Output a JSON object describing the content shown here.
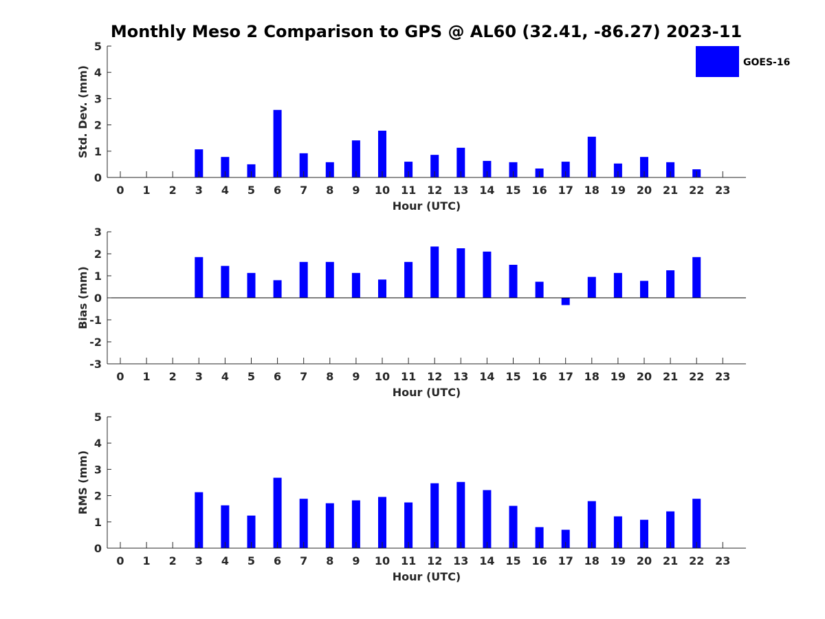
{
  "figure": {
    "title": "Monthly Meso 2 Comparison to GPS @ AL60 (32.41, -86.27) 2023-11",
    "bar_color": "#0000ff"
  },
  "legend": {
    "label": "GOES-16",
    "placement": "top-right"
  },
  "chart_data": [
    {
      "type": "bar",
      "id": "std",
      "xlabel": "Hour (UTC)",
      "ylabel": "Std. Dev. (mm)",
      "ylim": [
        0,
        5
      ],
      "yticks": [
        0,
        1,
        2,
        3,
        4,
        5
      ],
      "categories": [
        "0",
        "1",
        "2",
        "3",
        "4",
        "5",
        "6",
        "7",
        "8",
        "9",
        "10",
        "11",
        "12",
        "13",
        "14",
        "15",
        "16",
        "17",
        "18",
        "19",
        "20",
        "21",
        "22",
        "23"
      ],
      "series": [
        {
          "name": "GOES-16",
          "values": [
            null,
            null,
            null,
            1.07,
            0.78,
            0.5,
            2.57,
            0.92,
            0.58,
            1.41,
            1.78,
            0.6,
            0.86,
            1.13,
            0.63,
            0.58,
            0.34,
            0.6,
            1.55,
            0.53,
            0.78,
            0.58,
            0.31,
            null
          ]
        }
      ]
    },
    {
      "type": "bar",
      "id": "bias",
      "xlabel": "Hour (UTC)",
      "ylabel": "Bias (mm)",
      "ylim": [
        -3,
        3
      ],
      "yticks": [
        -3,
        -2,
        -1,
        0,
        1,
        2,
        3
      ],
      "zero_line": true,
      "categories": [
        "0",
        "1",
        "2",
        "3",
        "4",
        "5",
        "6",
        "7",
        "8",
        "9",
        "10",
        "11",
        "12",
        "13",
        "14",
        "15",
        "16",
        "17",
        "18",
        "19",
        "20",
        "21",
        "22",
        "23"
      ],
      "series": [
        {
          "name": "GOES-16",
          "values": [
            null,
            null,
            null,
            1.85,
            1.45,
            1.13,
            0.8,
            1.63,
            1.63,
            1.13,
            0.83,
            1.63,
            2.33,
            2.25,
            2.1,
            1.5,
            0.73,
            -0.33,
            0.95,
            1.13,
            0.77,
            1.25,
            1.85,
            null
          ]
        }
      ]
    },
    {
      "type": "bar",
      "id": "rms",
      "xlabel": "Hour (UTC)",
      "ylabel": "RMS (mm)",
      "ylim": [
        0,
        5
      ],
      "yticks": [
        0,
        1,
        2,
        3,
        4,
        5
      ],
      "categories": [
        "0",
        "1",
        "2",
        "3",
        "4",
        "5",
        "6",
        "7",
        "8",
        "9",
        "10",
        "11",
        "12",
        "13",
        "14",
        "15",
        "16",
        "17",
        "18",
        "19",
        "20",
        "21",
        "22",
        "23"
      ],
      "series": [
        {
          "name": "GOES-16",
          "values": [
            null,
            null,
            null,
            2.13,
            1.63,
            1.24,
            2.68,
            1.88,
            1.71,
            1.82,
            1.95,
            1.74,
            2.47,
            2.52,
            2.21,
            1.61,
            0.8,
            0.7,
            1.79,
            1.21,
            1.08,
            1.4,
            1.88,
            null
          ]
        }
      ]
    }
  ]
}
